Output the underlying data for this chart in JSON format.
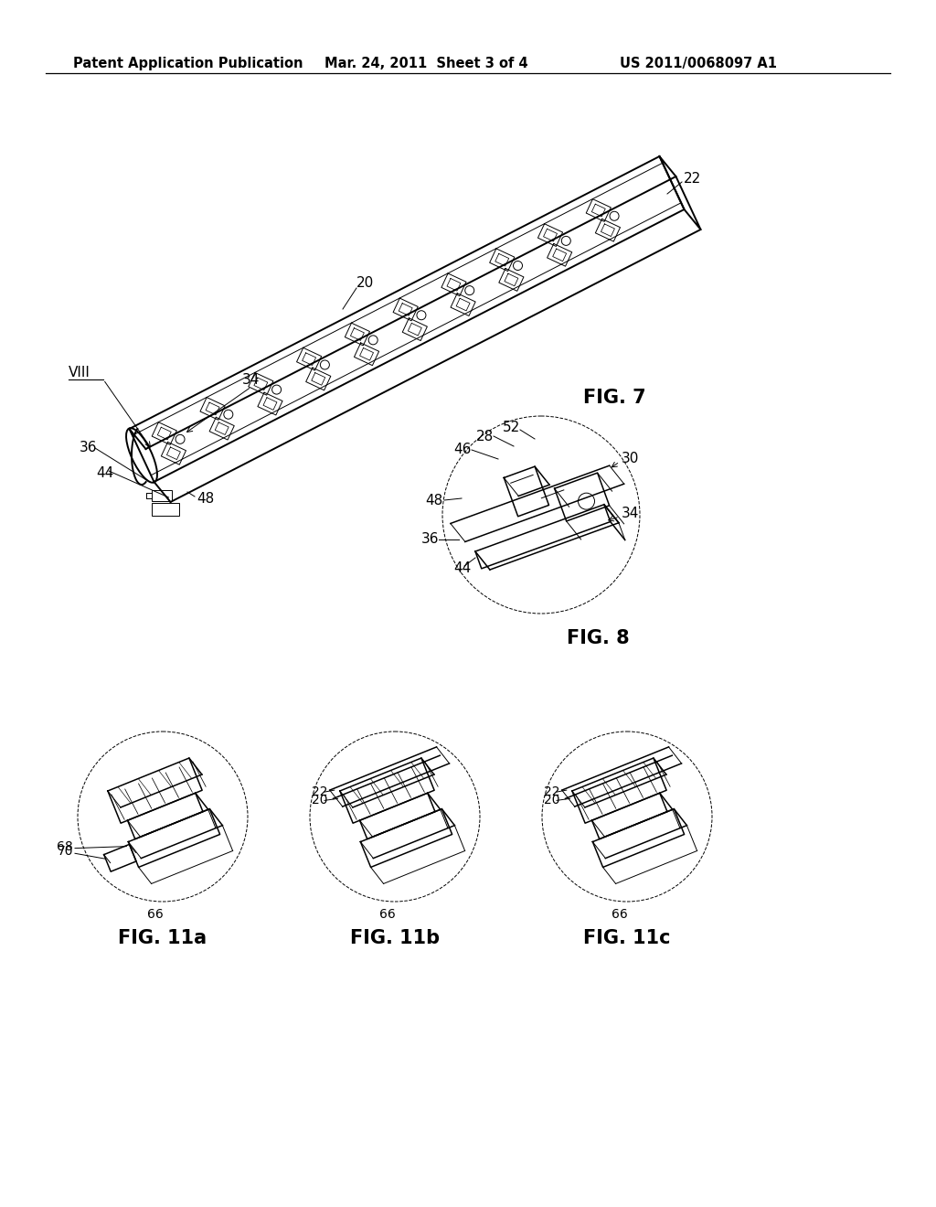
{
  "bg": "#ffffff",
  "lc": "#000000",
  "header_left": "Patent Application Publication",
  "header_mid": "Mar. 24, 2011  Sheet 3 of 4",
  "header_right": "US 2011/0068097 A1",
  "fig7_label": "FIG. 7",
  "fig8_label": "FIG. 8",
  "fig11a_label": "FIG. 11a",
  "fig11b_label": "FIG. 11b",
  "fig11c_label": "FIG. 11c",
  "hdr_fs": 10.5,
  "ann_fs": 11,
  "fig_fs": 15
}
